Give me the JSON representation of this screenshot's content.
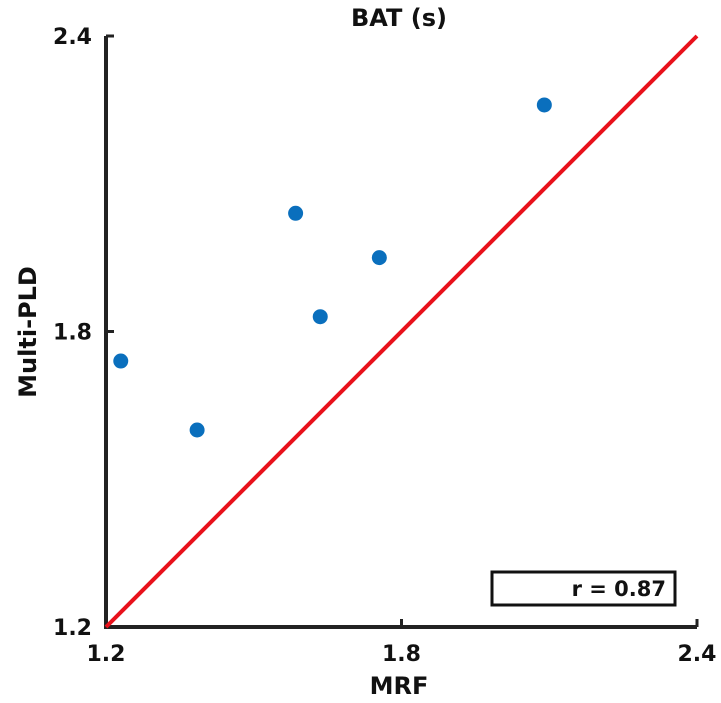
{
  "chart_data": {
    "type": "scatter",
    "title": "BAT (s)",
    "xlabel": "MRF",
    "ylabel": "Multi-PLD",
    "xlim": [
      1.2,
      2.4
    ],
    "ylim": [
      1.2,
      2.4
    ],
    "xticks": [
      "1.2",
      "1.8",
      "2.4"
    ],
    "yticks": [
      "1.2",
      "1.8",
      "2.4"
    ],
    "grid": false,
    "legend": "none",
    "points": [
      {
        "x": 1.23,
        "y": 1.74
      },
      {
        "x": 1.385,
        "y": 1.6
      },
      {
        "x": 1.585,
        "y": 2.04
      },
      {
        "x": 1.635,
        "y": 1.83
      },
      {
        "x": 1.755,
        "y": 1.95
      },
      {
        "x": 2.09,
        "y": 2.26
      }
    ],
    "reference_line": {
      "type": "identity",
      "from": [
        1.2,
        1.2
      ],
      "to": [
        2.4,
        2.4
      ],
      "color": "#e8111b"
    },
    "annotation": "r = 0.87",
    "marker_color": "#0a6fbd"
  }
}
